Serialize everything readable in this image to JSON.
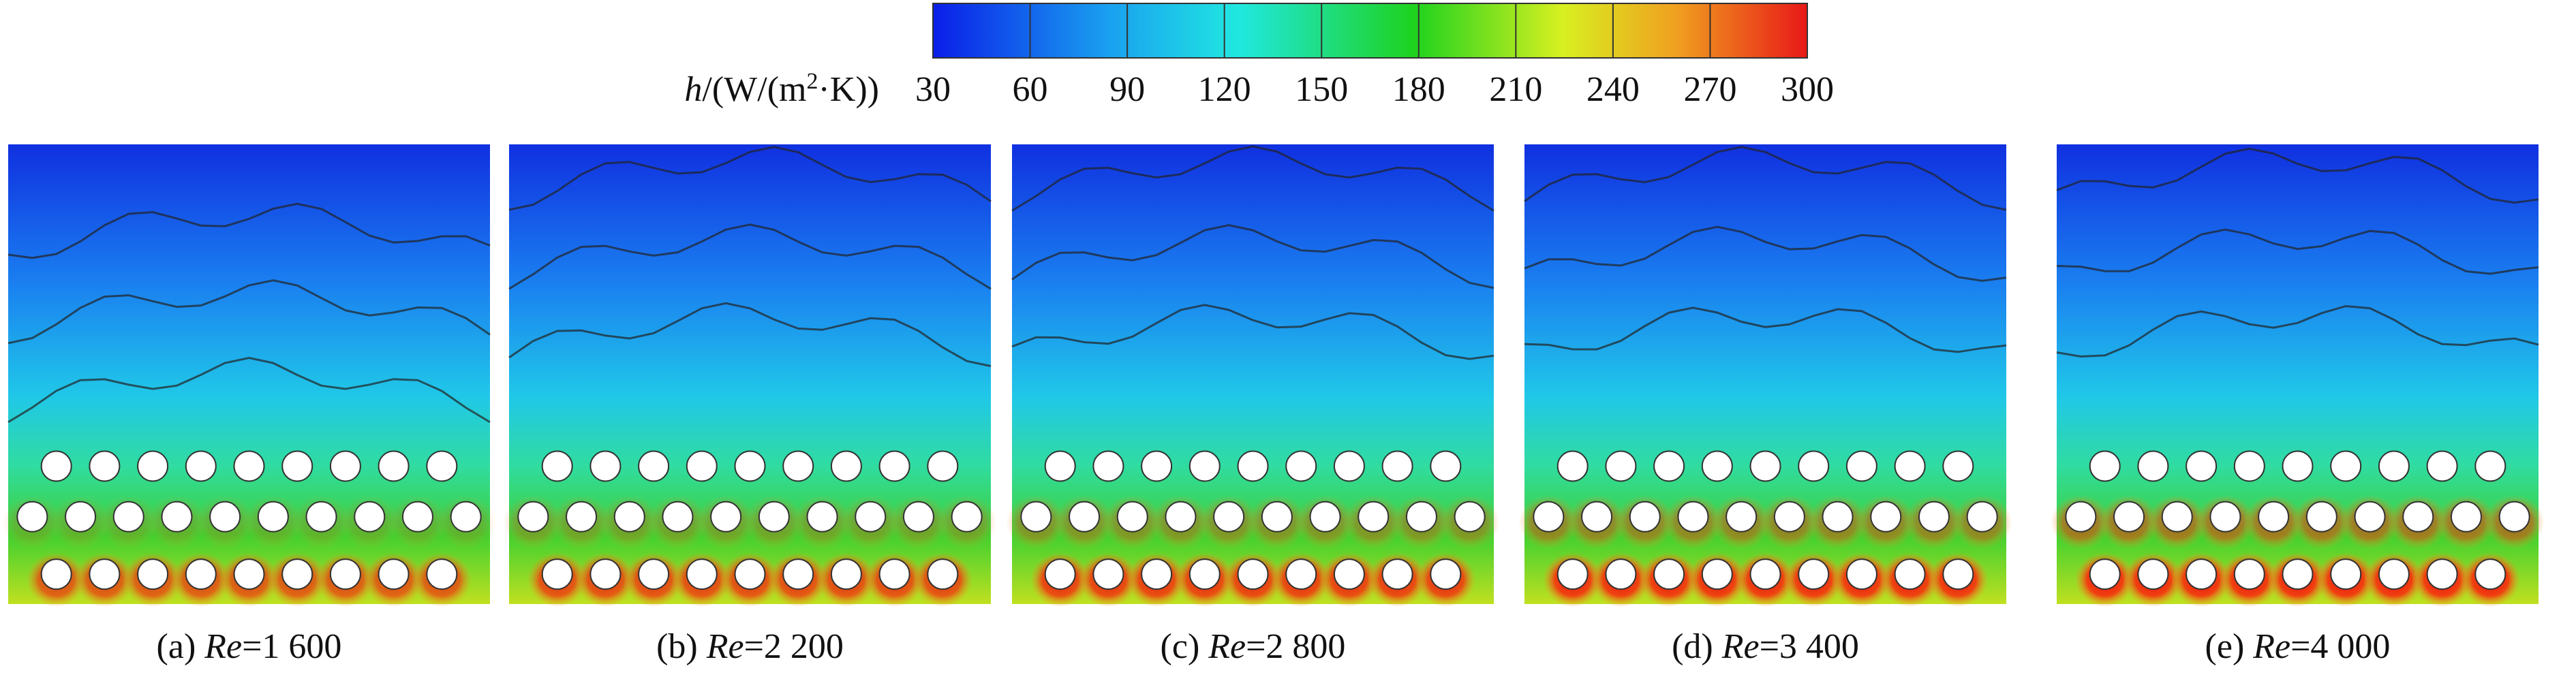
{
  "colorbar": {
    "label_var": "h",
    "label_units": "/(W/(m",
    "label_sup": "2",
    "label_end": "·K))",
    "ticks": [
      30,
      60,
      90,
      120,
      150,
      180,
      210,
      240,
      270,
      300
    ]
  },
  "panels": [
    {
      "prefix": "(a)",
      "variable": "Re",
      "value": "=1 600"
    },
    {
      "prefix": "(b)",
      "variable": "Re",
      "value": "=2 200"
    },
    {
      "prefix": "(c)",
      "variable": "Re",
      "value": "=2 800"
    },
    {
      "prefix": "(d)",
      "variable": "Re",
      "value": "=3 400"
    },
    {
      "prefix": "(e)",
      "variable": "Re",
      "value": "=4 000"
    }
  ]
}
